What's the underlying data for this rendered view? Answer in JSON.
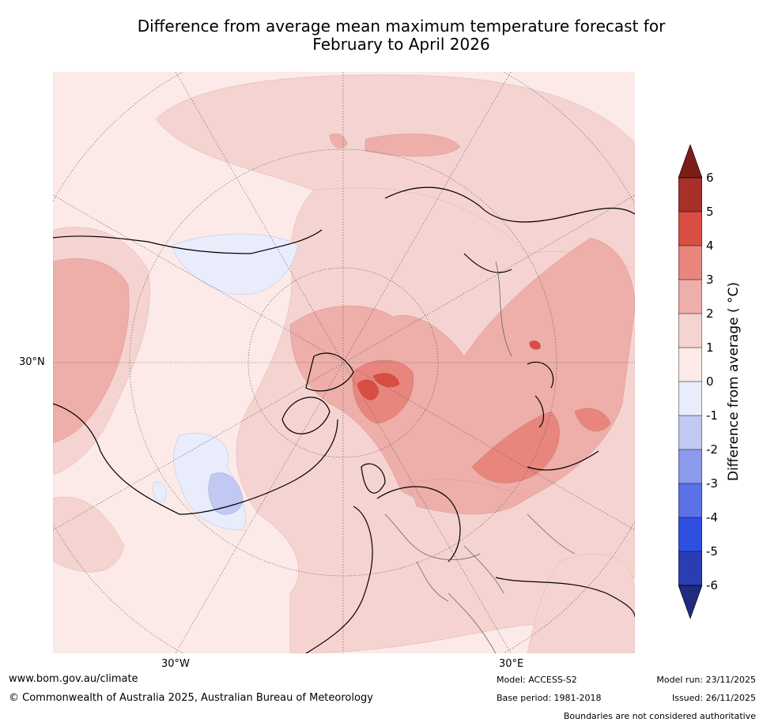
{
  "title": {
    "line1": "Difference from average mean maximum temperature forecast for",
    "line2": "February to April 2026"
  },
  "map": {
    "lat_label": "30°N",
    "lon_labels": [
      "30°W",
      "30°E"
    ]
  },
  "colorbar": {
    "label": "Difference from average ( °C)",
    "ticks": [
      "6",
      "5",
      "4",
      "3",
      "2",
      "1",
      "0",
      "-1",
      "-2",
      "-3",
      "-4",
      "-5",
      "-6"
    ],
    "colors": {
      "above_6": "#7b1d18",
      "5_6": "#a8302a",
      "4_5": "#d94e43",
      "3_4": "#e8867e",
      "2_3": "#eeaeaa",
      "1_2": "#f5d3d0",
      "0_1": "#fbeae8",
      "m1_0": "#e8ecfb",
      "m2_m1": "#c1c8f1",
      "m3_m2": "#8c9aec",
      "m4_m3": "#5a72e6",
      "m5_m4": "#2f4fe0",
      "m6_m5": "#2a3db5",
      "below_m6": "#1f2a80"
    }
  },
  "footer": {
    "website": "www.bom.gov.au/climate",
    "copyright": "© Commonwealth of Australia 2025, Australian Bureau of Meteorology",
    "model": "Model: ACCESS-S2",
    "base_period": "Base period: 1981-2018",
    "model_run": "Model run: 23/11/2025",
    "issued": "Issued: 26/11/2025",
    "disclaimer": "Boundaries are not considered authoritative"
  }
}
